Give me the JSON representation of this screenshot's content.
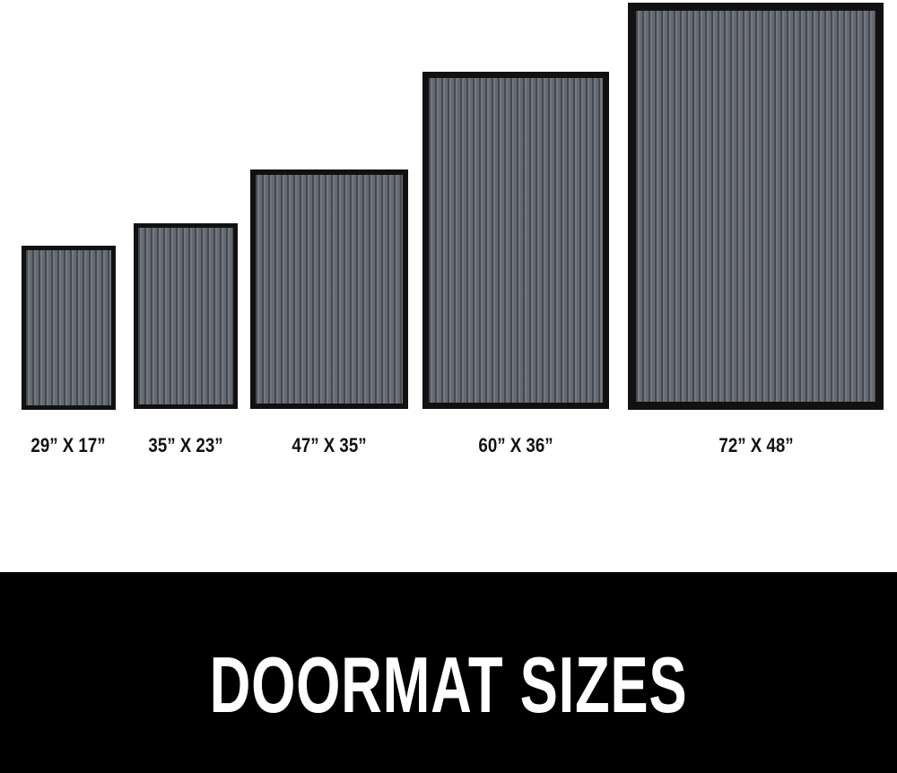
{
  "mats": [
    {
      "label": "29” X 17”"
    },
    {
      "label": "35” X 23”"
    },
    {
      "label": "47” X 35”"
    },
    {
      "label": "60” X 36”"
    },
    {
      "label": "72” X 48”"
    }
  ],
  "colors": {
    "pile": "#686c74",
    "border": "#111111",
    "band": "#000000"
  },
  "title": "DOORMAT SIZES"
}
